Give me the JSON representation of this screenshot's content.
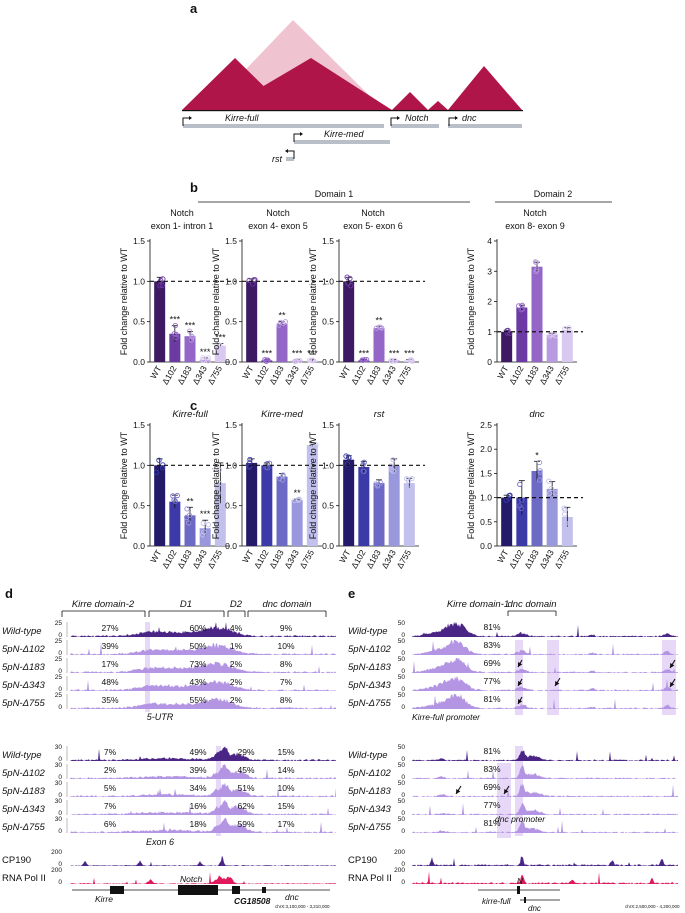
{
  "panel_letters": {
    "a": "a",
    "b": "b",
    "c": "c",
    "d": "d",
    "e": "e"
  },
  "panel_a": {
    "genes": [
      "Kirre-full",
      "Kirre-med",
      "Notch",
      "dnc",
      "rst"
    ]
  },
  "panel_b_headers": {
    "domain1": "Domain 1",
    "domain2": "Domain 2",
    "titles": [
      [
        "Notch",
        "exon 1- intron 1"
      ],
      [
        "Notch",
        "exon 4- exon 5"
      ],
      [
        "Notch",
        "exon 5- exon 6"
      ],
      [
        "Notch",
        "exon 8- exon 9"
      ]
    ]
  },
  "colors": {
    "bars": [
      "#3d1a63",
      "#6b3aa3",
      "#9466c8",
      "#b89ae0",
      "#d9c8f0"
    ],
    "bars_c": [
      "#231a6a",
      "#3b3aa8",
      "#6d6ac6",
      "#9a98dc",
      "#c2c0ec"
    ],
    "crimson": "#b0154a",
    "pink": "#f0c3d0",
    "track_dark": "#4a2585",
    "track_light": "#b395e3",
    "highlight": "#e6d8f6",
    "polII": "#e0195e"
  },
  "chart_data": [
    {
      "type": "bar",
      "panel": "b",
      "title": "Notch exon 1- intron 1",
      "ylabel": "Fold change relative to WT",
      "categories": [
        "WT",
        "Δ102",
        "Δ183",
        "Δ343",
        "Δ755"
      ],
      "values": [
        1.0,
        0.35,
        0.32,
        0.03,
        0.2
      ],
      "errors": [
        0.05,
        0.1,
        0.06,
        0.02,
        0.03
      ],
      "significance": [
        "",
        "***",
        "***",
        "***",
        "***"
      ],
      "ylim": [
        0,
        1.5
      ],
      "yticks": [
        "0.0",
        "0.5",
        "1.0",
        "1.5"
      ],
      "reference_line": 1.0
    },
    {
      "type": "bar",
      "panel": "b",
      "title": "Notch exon 4- exon 5",
      "ylabel": "Fold change relative to WT",
      "categories": [
        "WT",
        "Δ102",
        "Δ183",
        "Δ343",
        "Δ755"
      ],
      "values": [
        1.0,
        0.02,
        0.47,
        0.02,
        0.02
      ],
      "errors": [
        0.03,
        0.01,
        0.03,
        0.01,
        0.01
      ],
      "significance": [
        "",
        "***",
        "**",
        "***",
        "***"
      ],
      "ylim": [
        0,
        1.5
      ],
      "yticks": [
        "0.0",
        "0.5",
        "1.0",
        "1.5"
      ],
      "reference_line": 1.0
    },
    {
      "type": "bar",
      "panel": "b",
      "title": "Notch exon 5- exon 6",
      "ylabel": "Fold change relative to WT",
      "categories": [
        "WT",
        "Δ102",
        "Δ183",
        "Δ343",
        "Δ755"
      ],
      "values": [
        1.0,
        0.02,
        0.42,
        0.02,
        0.02
      ],
      "errors": [
        0.05,
        0.01,
        0.02,
        0.01,
        0.01
      ],
      "significance": [
        "",
        "***",
        "**",
        "***",
        "***"
      ],
      "ylim": [
        0,
        1.5
      ],
      "yticks": [
        "0.0",
        "0.5",
        "1.0",
        "1.5"
      ],
      "reference_line": 1.0
    },
    {
      "type": "bar",
      "panel": "b",
      "title": "Notch exon 8- exon 9",
      "ylabel": "Fold change relative to WT",
      "categories": [
        "WT",
        "Δ102",
        "Δ183",
        "Δ343",
        "Δ755"
      ],
      "values": [
        1.0,
        1.8,
        3.15,
        0.9,
        1.05
      ],
      "errors": [
        0.05,
        0.08,
        0.15,
        0.05,
        0.08
      ],
      "significance": [
        "",
        "",
        "",
        "",
        ""
      ],
      "ylim": [
        0,
        4
      ],
      "yticks": [
        "0",
        "1",
        "2",
        "3",
        "4"
      ],
      "reference_line": 1.0
    },
    {
      "type": "bar",
      "panel": "c",
      "title": "Kirre-full",
      "ylabel": "Fold change relative to WT",
      "categories": [
        "WT",
        "Δ102",
        "Δ183",
        "Δ343",
        "Δ755"
      ],
      "values": [
        1.0,
        0.55,
        0.38,
        0.22,
        0.78
      ],
      "errors": [
        0.08,
        0.08,
        0.1,
        0.1,
        0.25
      ],
      "significance": [
        "",
        "",
        "**",
        "***",
        ""
      ],
      "ylim": [
        0,
        1.5
      ],
      "yticks": [
        "0.0",
        "0.5",
        "1.0",
        "1.5"
      ],
      "reference_line": 1.0
    },
    {
      "type": "bar",
      "panel": "c",
      "title": "Kirre-med",
      "ylabel": "Fold change relative to WT",
      "categories": [
        "WT",
        "Δ102",
        "Δ183",
        "Δ343",
        "Δ755"
      ],
      "values": [
        1.03,
        1.0,
        0.86,
        0.57,
        1.25
      ],
      "errors": [
        0.05,
        0.03,
        0.04,
        0.01,
        0.03
      ],
      "significance": [
        "",
        "",
        "",
        "**",
        ""
      ],
      "ylim": [
        0,
        1.5
      ],
      "yticks": [
        "0.0",
        "0.5",
        "1.0",
        "1.5"
      ],
      "reference_line": 1.0
    },
    {
      "type": "bar",
      "panel": "c",
      "title": "rst",
      "ylabel": "Fold change relative to WT",
      "categories": [
        "WT",
        "Δ102",
        "Δ183",
        "Δ343",
        "Δ755"
      ],
      "values": [
        1.07,
        0.98,
        0.78,
        1.0,
        0.78
      ],
      "errors": [
        0.05,
        0.07,
        0.04,
        0.08,
        0.06
      ],
      "significance": [
        "",
        "",
        "",
        "",
        ""
      ],
      "ylim": [
        0,
        1.5
      ],
      "yticks": [
        "0.0",
        "0.5",
        "1.0",
        "1.5"
      ],
      "reference_line": 1.0
    },
    {
      "type": "bar",
      "panel": "c",
      "title": "dnc",
      "ylabel": "Fold change relative to WT",
      "categories": [
        "WT",
        "Δ102",
        "Δ183",
        "Δ343",
        "Δ755"
      ],
      "values": [
        1.0,
        1.0,
        1.55,
        1.18,
        0.6
      ],
      "errors": [
        0.05,
        0.35,
        0.2,
        0.15,
        0.2
      ],
      "significance": [
        "",
        "",
        "*",
        "",
        ""
      ],
      "ylim": [
        0,
        2.5
      ],
      "yticks": [
        "0.0",
        "0.5",
        "1.0",
        "1.5",
        "2.0",
        "2.5"
      ],
      "reference_line": 1.0
    }
  ],
  "panel_d": {
    "domain_labels": [
      "Kirre domain-2",
      "D1",
      "D2",
      "dnc domain"
    ],
    "section1_label": "5-UTR",
    "section2_label": "Exon 6",
    "section1": [
      {
        "name": "Wild-type",
        "max": "25",
        "pct": [
          "27%",
          "60%",
          "4%",
          "9%"
        ]
      },
      {
        "name": "5pN-Δ102",
        "max": "25",
        "pct": [
          "39%",
          "50%",
          "1%",
          "10%"
        ]
      },
      {
        "name": "5pN-Δ183",
        "max": "25",
        "pct": [
          "17%",
          "73%",
          "2%",
          "8%"
        ]
      },
      {
        "name": "5pN-Δ343",
        "max": "25",
        "pct": [
          "48%",
          "43%",
          "2%",
          "7%"
        ]
      },
      {
        "name": "5pN-Δ755",
        "max": "25",
        "pct": [
          "35%",
          "55%",
          "2%",
          "8%"
        ]
      }
    ],
    "section2": [
      {
        "name": "Wild-type",
        "max": "30",
        "pct": [
          "7%",
          "49%",
          "29%",
          "15%"
        ]
      },
      {
        "name": "5pN-Δ102",
        "max": "30",
        "pct": [
          "2%",
          "39%",
          "45%",
          "14%"
        ]
      },
      {
        "name": "5pN-Δ183",
        "max": "30",
        "pct": [
          "5%",
          "34%",
          "51%",
          "10%"
        ]
      },
      {
        "name": "5pN-Δ343",
        "max": "30",
        "pct": [
          "7%",
          "16%",
          "62%",
          "15%"
        ]
      },
      {
        "name": "5pN-Δ755",
        "max": "30",
        "pct": [
          "6%",
          "18%",
          "59%",
          "17%"
        ]
      }
    ],
    "chip": [
      {
        "name": "CP190",
        "max": "200"
      },
      {
        "name": "RNA Pol II",
        "max": "200"
      }
    ],
    "genes": [
      "Kirre",
      "Notch",
      "dnc",
      "CG18508"
    ],
    "coords": "chrX:3,100,000 - 3,210,000"
  },
  "panel_e": {
    "domain_labels": [
      "Kirre domain-1",
      "dnc domain"
    ],
    "section1_label": "Kirre-full promoter",
    "section2_label": "dnc promoter",
    "section1": [
      {
        "name": "Wild-type",
        "max": "50",
        "pct": "81%"
      },
      {
        "name": "5pN-Δ102",
        "max": "50",
        "pct": "83%"
      },
      {
        "name": "5pN-Δ183",
        "max": "50",
        "pct": "69%"
      },
      {
        "name": "5pN-Δ343",
        "max": "50",
        "pct": "77%"
      },
      {
        "name": "5pN-Δ755",
        "max": "50",
        "pct": "81%"
      }
    ],
    "section2": [
      {
        "name": "Wild-type",
        "max": "50",
        "pct": "81%"
      },
      {
        "name": "5pN-Δ102",
        "max": "50",
        "pct": "83%"
      },
      {
        "name": "5pN-Δ183",
        "max": "50",
        "pct": "69%"
      },
      {
        "name": "5pN-Δ343",
        "max": "50",
        "pct": "77%"
      },
      {
        "name": "5pN-Δ755",
        "max": "50",
        "pct": "81%"
      }
    ],
    "chip": [
      {
        "name": "CP190",
        "max": "200"
      },
      {
        "name": "RNA Pol II",
        "max": "200"
      }
    ],
    "genes": [
      "N",
      "kirre-full",
      "dnc"
    ],
    "coords": "chrX:2,500,000 - 4,200,000"
  }
}
